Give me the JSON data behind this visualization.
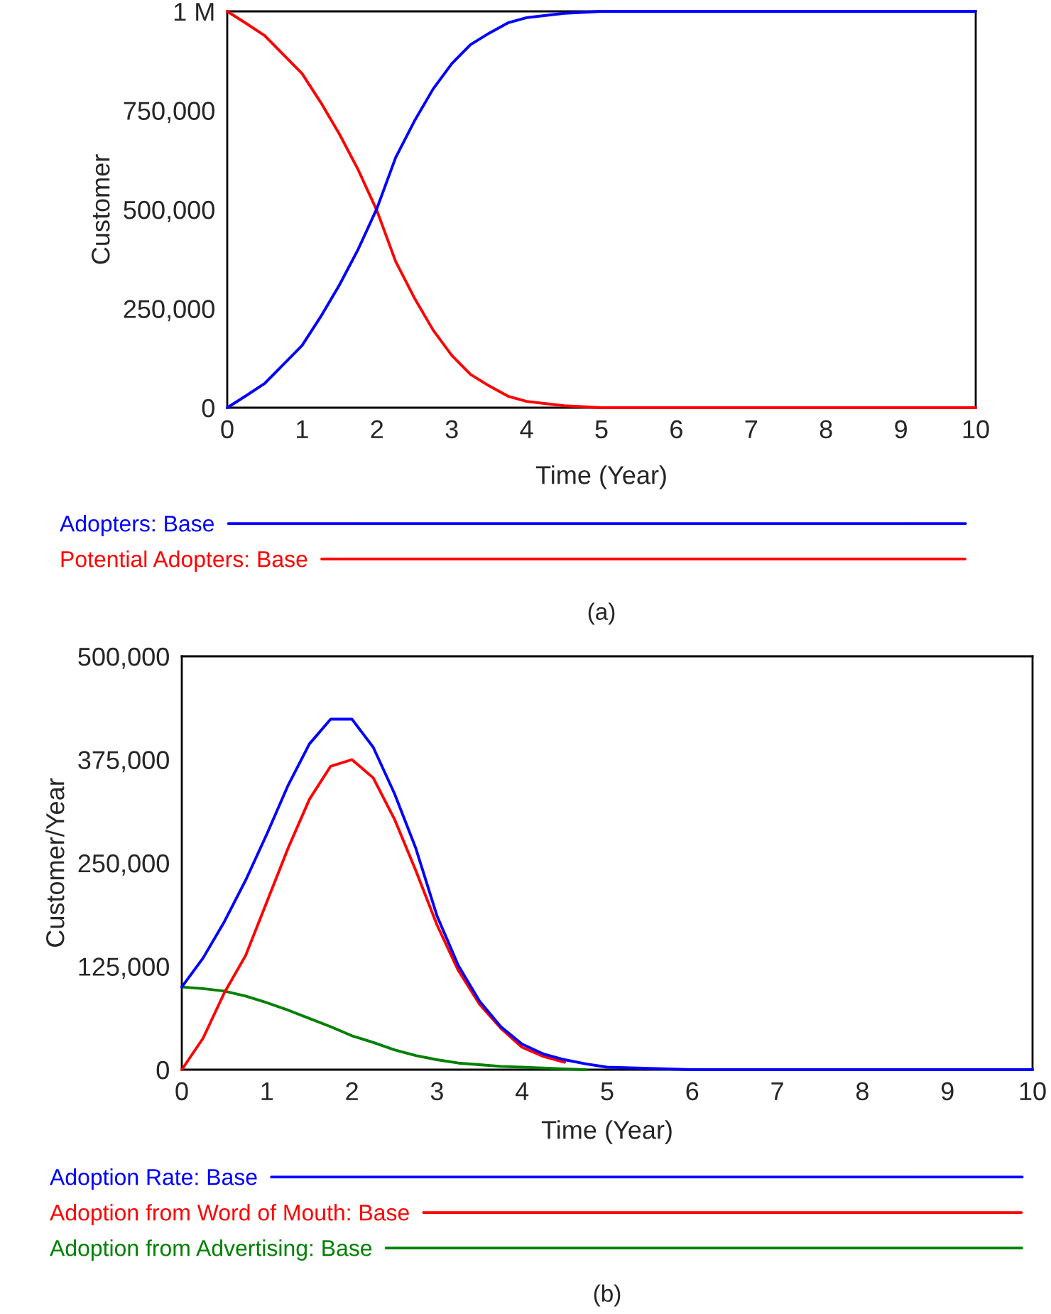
{
  "chart_data": [
    {
      "type": "line",
      "xlabel": "Time (Year)",
      "ylabel": "Customer",
      "annotations": [
        "(a)"
      ],
      "legend": "bottom",
      "grid": false,
      "line_style": "solid",
      "x": [
        0,
        0.25,
        0.5,
        0.75,
        1,
        1.25,
        1.5,
        1.75,
        2,
        2.25,
        2.5,
        2.75,
        3,
        3.25,
        3.5,
        3.75,
        4,
        4.5,
        5,
        6,
        7,
        8,
        9,
        10
      ],
      "xlim": [
        0,
        10
      ],
      "xticks": [
        0,
        1,
        2,
        3,
        4,
        5,
        6,
        7,
        8,
        9,
        10
      ],
      "ylim": [
        0,
        1000000
      ],
      "yticks": [
        0,
        {
          "value": 250000,
          "label": "250,000"
        },
        {
          "value": 500000,
          "label": "500,000"
        },
        {
          "value": 750000,
          "label": "750,000"
        },
        {
          "value": 1000000,
          "label": "1 M"
        }
      ],
      "series": [
        {
          "name": "Adopters: Base",
          "color": "#0000ff",
          "values": [
            0,
            30000,
            61000,
            109000,
            157000,
            230000,
            310000,
            400000,
            503000,
            631000,
            723000,
            804000,
            868000,
            916000,
            945000,
            971000,
            984000,
            995000,
            1000000,
            1000000,
            1000000,
            1000000,
            1000000,
            1000000
          ]
        },
        {
          "name": "Potential Adopters: Base",
          "color": "#ff0000",
          "values": [
            1000000,
            970000,
            939000,
            891000,
            843000,
            770000,
            690000,
            600000,
            497000,
            369000,
            277000,
            196000,
            132000,
            84000,
            55000,
            29000,
            16000,
            5000,
            0,
            0,
            0,
            0,
            0,
            0
          ]
        }
      ]
    },
    {
      "type": "line",
      "xlabel": "Time (Year)",
      "ylabel": "Customer/Year",
      "annotations": [
        "(b)"
      ],
      "legend": "bottom",
      "grid": false,
      "line_style": "solid",
      "x": [
        0,
        0.25,
        0.5,
        0.75,
        1,
        1.25,
        1.5,
        1.75,
        2,
        2.25,
        2.5,
        2.75,
        3,
        3.25,
        3.5,
        3.75,
        4,
        4.25,
        4.5,
        4.75,
        5,
        6,
        7,
        8,
        9,
        10
      ],
      "xlim": [
        0,
        10
      ],
      "xticks": [
        0,
        1,
        2,
        3,
        4,
        5,
        6,
        7,
        8,
        9,
        10
      ],
      "ylim": [
        0,
        500000
      ],
      "yticks": [
        0,
        {
          "value": 125000,
          "label": "125,000"
        },
        {
          "value": 250000,
          "label": "250,000"
        },
        {
          "value": 375000,
          "label": "375,000"
        },
        {
          "value": 500000,
          "label": "500,000"
        }
      ],
      "series": [
        {
          "name": "Adoption Rate: Base",
          "color": "#0000ff",
          "values": [
            100000,
            135000,
            179000,
            229000,
            285000,
            344000,
            394000,
            424000,
            424000,
            390000,
            334000,
            268000,
            186000,
            126000,
            83000,
            52000,
            31000,
            19000,
            12000,
            7000,
            3000,
            0,
            0,
            0,
            0,
            0
          ]
        },
        {
          "name": "Adoption from Word of Mouth: Base",
          "color": "#ff0000",
          "values": [
            0,
            38000,
            93000,
            138000,
            203000,
            268000,
            327000,
            367000,
            375000,
            353000,
            303000,
            241000,
            175000,
            120000,
            79000,
            50000,
            27000,
            16000,
            9000,
            null,
            null,
            null,
            null,
            null,
            null,
            null
          ]
        },
        {
          "name": "Adoption from Advertising: Base",
          "color": "#008000",
          "values": [
            100000,
            98000,
            95000,
            89000,
            81000,
            72000,
            62000,
            52000,
            41000,
            33000,
            24000,
            17000,
            12000,
            8000,
            6000,
            4000,
            3000,
            2000,
            1000,
            0,
            null,
            null,
            null,
            null,
            null,
            null
          ]
        }
      ]
    }
  ]
}
